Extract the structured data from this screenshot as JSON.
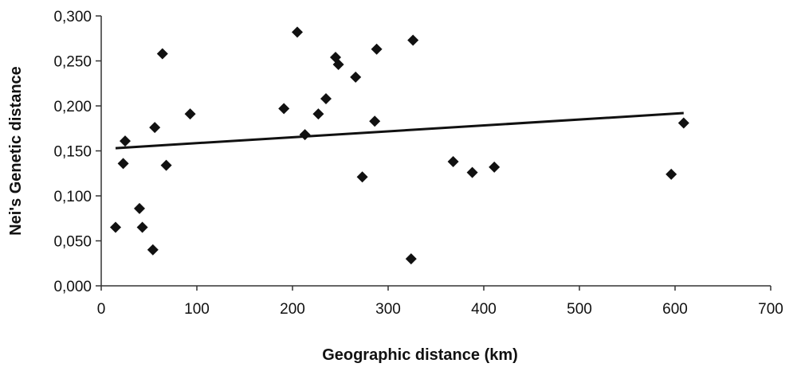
{
  "chart_data": {
    "type": "scatter",
    "title": "",
    "xlabel": "Geographic distance (km)",
    "ylabel": "Nei's Genetic distance",
    "xlim": [
      0,
      700
    ],
    "ylim": [
      0,
      0.3
    ],
    "x_ticks": [
      "0",
      "100",
      "200",
      "300",
      "400",
      "500",
      "600",
      "700"
    ],
    "y_ticks": [
      "0,000",
      "0,050",
      "0,100",
      "0,150",
      "0,200",
      "0,250",
      "0,300"
    ],
    "grid": false,
    "legend": "none",
    "marker": "diamond",
    "colors": {
      "points": "#111111",
      "trendline": "#111111",
      "axes": "#333333"
    },
    "series": [
      {
        "points": [
          [
            15,
            0.065
          ],
          [
            23,
            0.136
          ],
          [
            25,
            0.161
          ],
          [
            40,
            0.086
          ],
          [
            43,
            0.065
          ],
          [
            54,
            0.04
          ],
          [
            56,
            0.176
          ],
          [
            64,
            0.258
          ],
          [
            68,
            0.134
          ],
          [
            93,
            0.191
          ],
          [
            191,
            0.197
          ],
          [
            205,
            0.282
          ],
          [
            213,
            0.168
          ],
          [
            227,
            0.191
          ],
          [
            235,
            0.208
          ],
          [
            245,
            0.254
          ],
          [
            248,
            0.246
          ],
          [
            266,
            0.232
          ],
          [
            273,
            0.121
          ],
          [
            286,
            0.183
          ],
          [
            288,
            0.263
          ],
          [
            324,
            0.03
          ],
          [
            326,
            0.273
          ],
          [
            368,
            0.138
          ],
          [
            388,
            0.126
          ],
          [
            411,
            0.132
          ],
          [
            596,
            0.124
          ],
          [
            609,
            0.181
          ]
        ]
      }
    ],
    "trendline": {
      "x": [
        15,
        609
      ],
      "y": [
        0.153,
        0.192
      ]
    }
  }
}
